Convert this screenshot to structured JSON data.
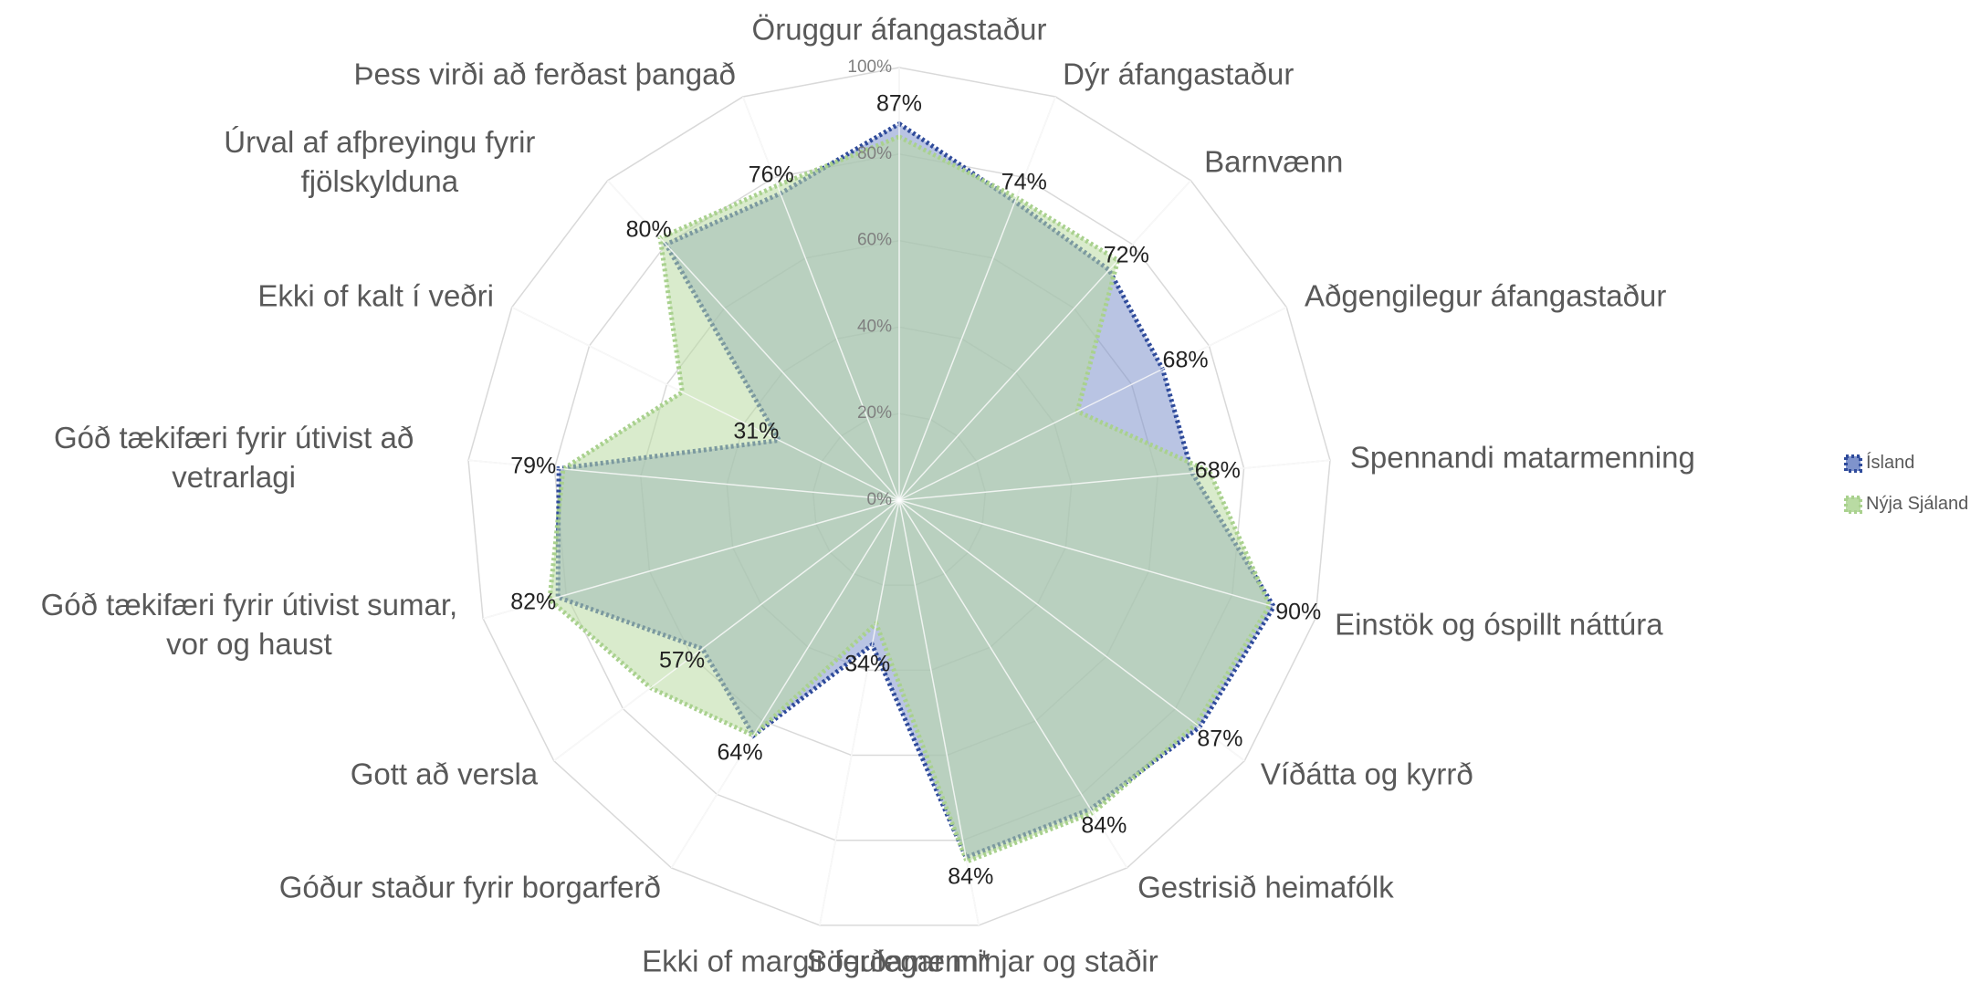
{
  "chart_data": {
    "type": "radar",
    "categories": [
      "Öruggur áfangastaður",
      "Dýr áfangastaður",
      "Barnvænn",
      "Aðgengilegur áfangastaður",
      "Spennandi matarmenning",
      "Einstök og óspillt náttúra",
      "Víðátta og kyrrð",
      "Gestrisið heimafólk",
      "Sögulegar minjar og staðir",
      "Ekki of margir ferðamenn*",
      "Góður staður fyrir borgarferð",
      "Gott að versla",
      "Góð tækifæri fyrir útivist sumar, vor og haust",
      "Góð tækifæri fyrir útivist að vetrarlagi",
      "Ekki of kalt í veðri",
      "Úrval af afþreyingu fyrir fjölskylduna",
      "Þess virði að ferðast þangað"
    ],
    "series": [
      {
        "name": "Ísland",
        "color": "#2f4b9b",
        "fill": "#7f93cc",
        "values": [
          87,
          74,
          72,
          68,
          68,
          90,
          87,
          84,
          84,
          34,
          64,
          57,
          82,
          79,
          31,
          80,
          76
        ],
        "value_labels": [
          "87%",
          "74%",
          "72%",
          "68%",
          "68%",
          "90%",
          "87%",
          "84%",
          "84%",
          "34%",
          "64%",
          "57%",
          "82%",
          "79%",
          "31%",
          "80%",
          "76%"
        ]
      },
      {
        "name": "Nýja Sjáland",
        "color": "#a9d18e",
        "fill": "#b9dba3",
        "values": [
          84,
          75,
          75,
          46,
          72,
          89,
          86,
          85,
          85,
          29,
          64,
          72,
          84,
          78,
          56,
          82,
          78
        ]
      }
    ],
    "ylim": [
      0,
      100
    ],
    "yticks": [
      {
        "value": 0,
        "label": "0%"
      },
      {
        "value": 20,
        "label": "20%"
      },
      {
        "value": 40,
        "label": "40%"
      },
      {
        "value": 60,
        "label": "60%"
      },
      {
        "value": 80,
        "label": "80%"
      },
      {
        "value": 100,
        "label": "100%"
      }
    ],
    "grid": true,
    "legend": "right"
  }
}
